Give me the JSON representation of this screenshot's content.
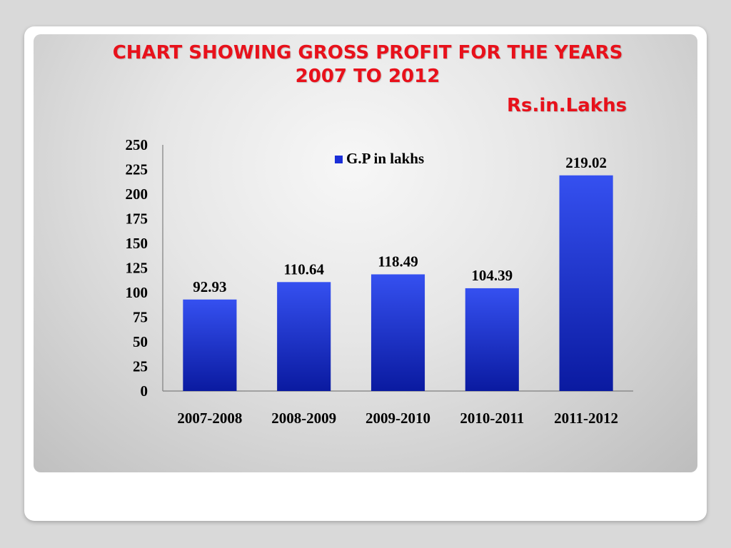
{
  "slide": {
    "title_line1": "CHART SHOWING GROSS PROFIT FOR THE YEARS",
    "title_line2": "2007 TO 2012",
    "unit_note": "Rs.in.Lakhs"
  },
  "chart_data": {
    "type": "bar",
    "categories": [
      "2007-2008",
      "2008-2009",
      "2009-2010",
      "2010-2011",
      "2011-2012"
    ],
    "series": [
      {
        "name": "G.P in lakhs",
        "values": [
          92.93,
          110.64,
          118.49,
          104.39,
          219.02
        ]
      }
    ],
    "data_labels": [
      "92.93",
      "110.64",
      "118.49",
      "104.39",
      "219.02"
    ],
    "yticks": [
      "0",
      "25",
      "50",
      "75",
      "100",
      "125",
      "150",
      "175",
      "200",
      "225",
      "250"
    ],
    "ylim": [
      0,
      250
    ],
    "legend_position": "top",
    "grid": false,
    "bar_color": "#1a2ed8"
  }
}
